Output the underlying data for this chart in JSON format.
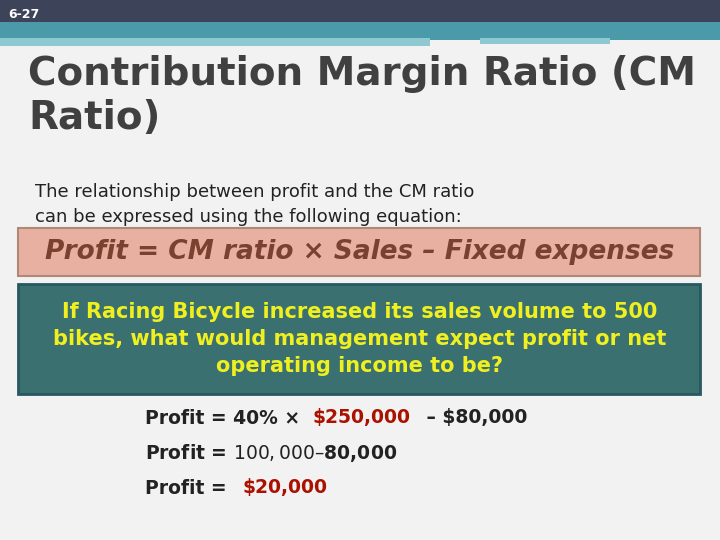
{
  "slide_number": "6-27",
  "title": "Contribution Margin Ratio (CM\nRatio)",
  "bg_color": "#f2f2f2",
  "header_dark": "#3d4459",
  "header_teal": "#4a9aaa",
  "header_light": "#8ec8d0",
  "title_color": "#404040",
  "body_text": "The relationship between profit and the CM ratio\ncan be expressed using the following equation:",
  "body_color": "#222222",
  "equation_text": "Profit = CM ratio × Sales – Fixed expenses",
  "equation_bg": "#e8b0a0",
  "equation_border": "#b08878",
  "equation_text_color": "#7a4030",
  "question_text": "If Racing Bicycle increased its sales volume to 500\nbikes, what would management expect profit or net\noperating income to be?",
  "question_bg": "#3a7070",
  "question_border": "#285860",
  "question_text_color": "#f0f020",
  "profit_line1_pre": "Profit = 40% × ",
  "profit_line1_highlight": "$250,000",
  "profit_line1_post": " – $80,000",
  "profit_line2": "Profit = $100,000 – $80,000",
  "profit_line3_pre": "Profit = ",
  "profit_line3_highlight": "$20,000",
  "highlight_color": "#aa1100",
  "normal_text_color": "#222222",
  "figsize": [
    7.2,
    5.4
  ],
  "dpi": 100
}
